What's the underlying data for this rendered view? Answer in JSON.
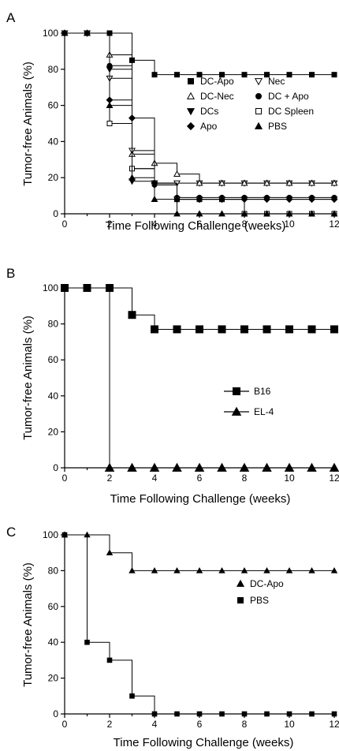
{
  "chart_data": [
    {
      "panel": "A",
      "type": "line",
      "xlabel": "Time Following Challenge (weeks)",
      "ylabel": "Tumor-free Animals (%)",
      "xlim": [
        0,
        12
      ],
      "ylim": [
        0,
        100
      ],
      "xticks": [
        0,
        2,
        4,
        6,
        8,
        10,
        12
      ],
      "yticks": [
        0,
        20,
        40,
        60,
        80,
        100
      ],
      "grid": false,
      "legend_position": "center-right",
      "series": [
        {
          "name": "DC-Apo",
          "marker": "square-filled",
          "steps": [
            [
              0,
              100
            ],
            [
              3,
              85
            ],
            [
              4,
              77
            ],
            [
              12,
              77
            ]
          ],
          "markers_x": [
            0,
            1,
            2,
            3,
            4,
            5,
            6,
            7,
            8,
            9,
            10,
            11,
            12
          ]
        },
        {
          "name": "Nec",
          "marker": "triangle-down-open",
          "steps": [
            [
              0,
              100
            ],
            [
              2,
              75
            ],
            [
              3,
              35
            ],
            [
              4,
              17
            ],
            [
              12,
              17
            ]
          ],
          "markers_x": [
            0,
            1,
            2,
            3,
            4,
            5,
            6,
            7,
            8,
            9,
            10,
            11,
            12
          ]
        },
        {
          "name": "DC-Nec",
          "marker": "triangle-open",
          "steps": [
            [
              0,
              100
            ],
            [
              2,
              88
            ],
            [
              3,
              33
            ],
            [
              4,
              28
            ],
            [
              5,
              22
            ],
            [
              6,
              17
            ],
            [
              12,
              17
            ]
          ],
          "markers_x": [
            0,
            1,
            2,
            3,
            4,
            5,
            6,
            7,
            8,
            9,
            10,
            11,
            12
          ]
        },
        {
          "name": "DC + Apo",
          "marker": "circle-filled",
          "steps": [
            [
              0,
              100
            ],
            [
              2,
              82
            ],
            [
              3,
              25
            ],
            [
              4,
              16
            ],
            [
              5,
              9
            ],
            [
              12,
              9
            ]
          ],
          "markers_x": [
            0,
            1,
            2,
            3,
            4,
            5,
            6,
            7,
            8,
            9,
            10,
            11,
            12
          ]
        },
        {
          "name": "DCs",
          "marker": "triangle-down-filled",
          "steps": [
            [
              0,
              100
            ],
            [
              2,
              80
            ],
            [
              3,
              18
            ],
            [
              4,
              16
            ],
            [
              5,
              8
            ],
            [
              12,
              8
            ]
          ],
          "markers_x": [
            0,
            1,
            2,
            3,
            4,
            5,
            6,
            7,
            8,
            9,
            10,
            11,
            12
          ]
        },
        {
          "name": "DC Spleen",
          "marker": "square-open",
          "steps": [
            [
              0,
              100
            ],
            [
              2,
              50
            ],
            [
              3,
              25
            ],
            [
              4,
              17
            ],
            [
              5,
              8
            ],
            [
              8,
              0
            ],
            [
              12,
              0
            ]
          ],
          "markers_x": [
            0,
            1,
            2,
            3,
            4,
            5,
            6,
            7,
            8,
            9,
            10,
            11,
            12
          ]
        },
        {
          "name": "Apo",
          "marker": "diamond-filled",
          "steps": [
            [
              0,
              100
            ],
            [
              2,
              63
            ],
            [
              3,
              53
            ],
            [
              4,
              17
            ],
            [
              5,
              8
            ],
            [
              12,
              8
            ]
          ],
          "markers_x": [
            0,
            1,
            2,
            3,
            4,
            5,
            6,
            7,
            8,
            9,
            10,
            11,
            12
          ]
        },
        {
          "name": "PBS",
          "marker": "triangle-filled",
          "steps": [
            [
              0,
              100
            ],
            [
              2,
              60
            ],
            [
              3,
              20
            ],
            [
              4,
              8
            ],
            [
              5,
              0
            ],
            [
              12,
              0
            ]
          ],
          "markers_x": [
            0,
            1,
            2,
            3,
            4,
            5,
            6,
            7,
            8,
            9,
            10,
            11,
            12
          ]
        }
      ]
    },
    {
      "panel": "B",
      "type": "line",
      "xlabel": "Time Following Challenge (weeks)",
      "ylabel": "Tumor-free Animals (%)",
      "xlim": [
        0,
        12
      ],
      "ylim": [
        0,
        100
      ],
      "xticks": [
        0,
        2,
        4,
        6,
        8,
        10,
        12
      ],
      "yticks": [
        0,
        20,
        40,
        60,
        80,
        100
      ],
      "grid": false,
      "legend_position": "center-right",
      "series": [
        {
          "name": "B16",
          "marker": "square-filled",
          "steps": [
            [
              0,
              100
            ],
            [
              3,
              85
            ],
            [
              4,
              77
            ],
            [
              12,
              77
            ]
          ],
          "markers_x": [
            0,
            1,
            2,
            3,
            4,
            5,
            6,
            7,
            8,
            9,
            10,
            11,
            12
          ]
        },
        {
          "name": "EL-4",
          "marker": "triangle-filled",
          "steps": [
            [
              0,
              100
            ],
            [
              2,
              0
            ],
            [
              12,
              0
            ]
          ],
          "markers_x": [
            2,
            3,
            4,
            5,
            6,
            7,
            8,
            9,
            10,
            11,
            12
          ]
        }
      ]
    },
    {
      "panel": "C",
      "type": "line",
      "xlabel": "Time Following Challenge (weeks)",
      "ylabel": "Tumor-free Animals (%)",
      "xlim": [
        0,
        12
      ],
      "ylim": [
        0,
        100
      ],
      "xticks": [
        0,
        2,
        4,
        6,
        8,
        10,
        12
      ],
      "yticks": [
        0,
        20,
        40,
        60,
        80,
        100
      ],
      "grid": false,
      "legend_position": "center-right",
      "series": [
        {
          "name": "DC-Apo",
          "marker": "triangle-filled",
          "steps": [
            [
              0,
              100
            ],
            [
              2,
              90
            ],
            [
              3,
              80
            ],
            [
              12,
              80
            ]
          ],
          "markers_x": [
            0,
            1,
            2,
            3,
            4,
            5,
            6,
            7,
            8,
            9,
            10,
            11,
            12
          ]
        },
        {
          "name": "PBS",
          "marker": "square-filled",
          "steps": [
            [
              0,
              100
            ],
            [
              1,
              40
            ],
            [
              2,
              30
            ],
            [
              3,
              10
            ],
            [
              4,
              0
            ],
            [
              12,
              0
            ]
          ],
          "markers_x": [
            0,
            1,
            2,
            3,
            4,
            5,
            6,
            7,
            8,
            9,
            10,
            11,
            12
          ]
        }
      ]
    }
  ]
}
